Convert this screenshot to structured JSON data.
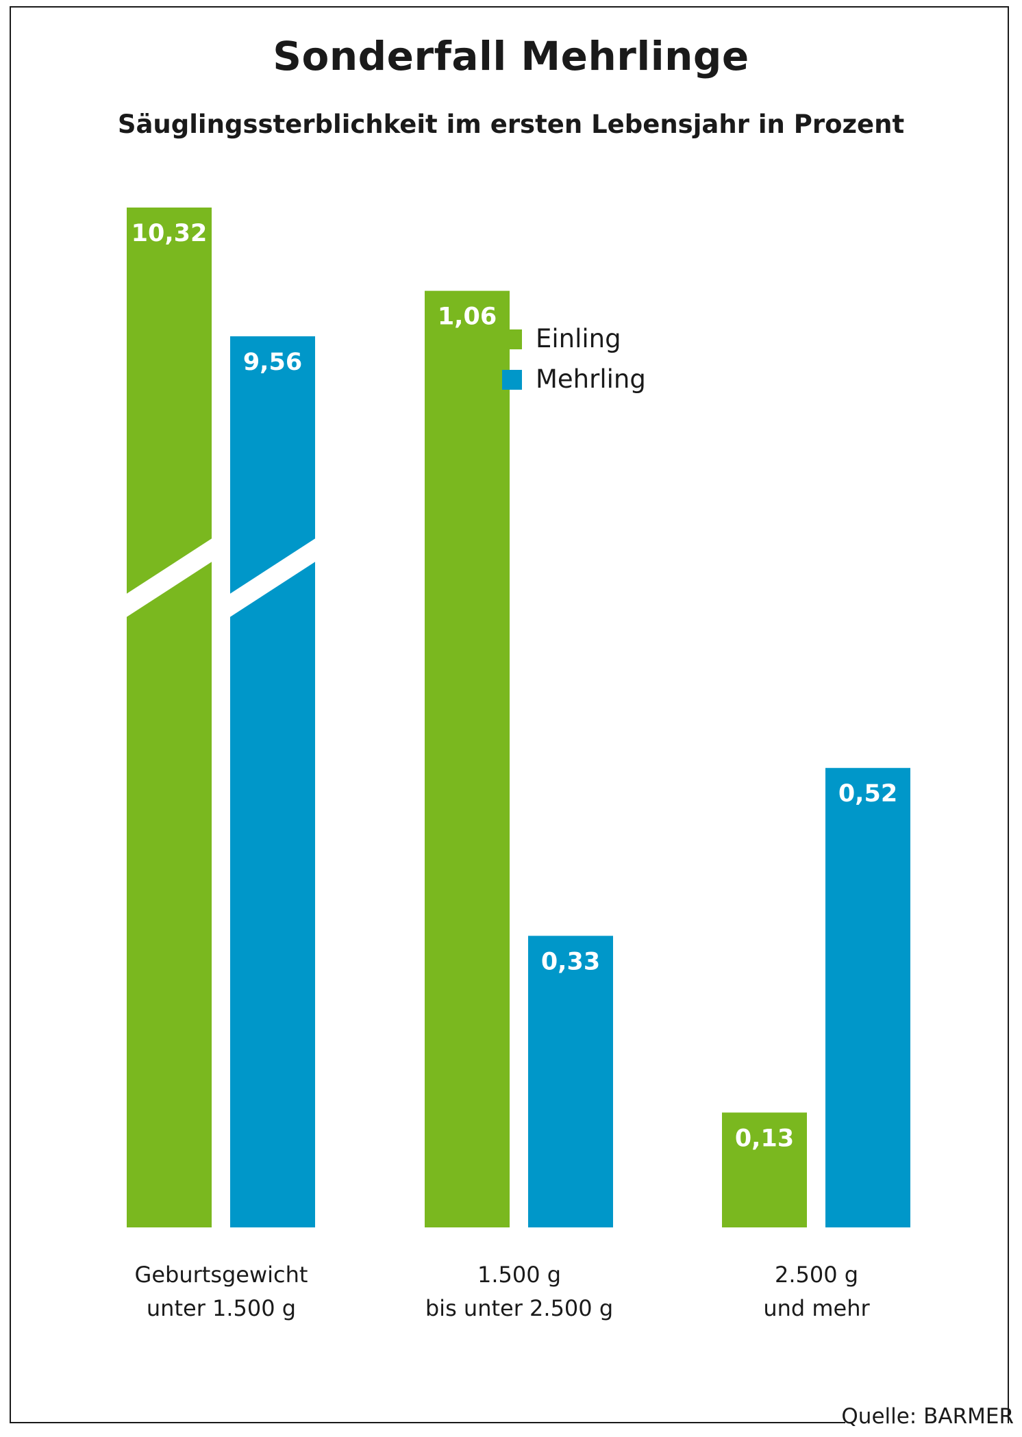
{
  "chart_data": {
    "type": "bar",
    "title": "Sonderfall Mehrlinge",
    "subtitle": "Säuglingssterblichkeit im ersten Lebensjahr in Prozent",
    "categories": [
      [
        "Geburtsgewicht",
        "unter 1.500 g"
      ],
      [
        "1.500 g",
        "bis unter 2.500 g"
      ],
      [
        "2.500 g",
        "und mehr"
      ]
    ],
    "series": [
      {
        "name": "Einling",
        "color": "#7ab81f",
        "values": [
          10.32,
          1.06,
          0.13
        ],
        "labels": [
          "10,32",
          "1,06",
          "0,13"
        ]
      },
      {
        "name": "Mehrling",
        "color": "#0097c9",
        "values": [
          9.56,
          0.33,
          0.52
        ],
        "labels": [
          "9,56",
          "0,33",
          "0,52"
        ]
      }
    ],
    "axis_break": "first category bars are truncated (broken axis)",
    "legend_position": "top-center",
    "grid": false,
    "source": "Quelle: BARMER"
  }
}
